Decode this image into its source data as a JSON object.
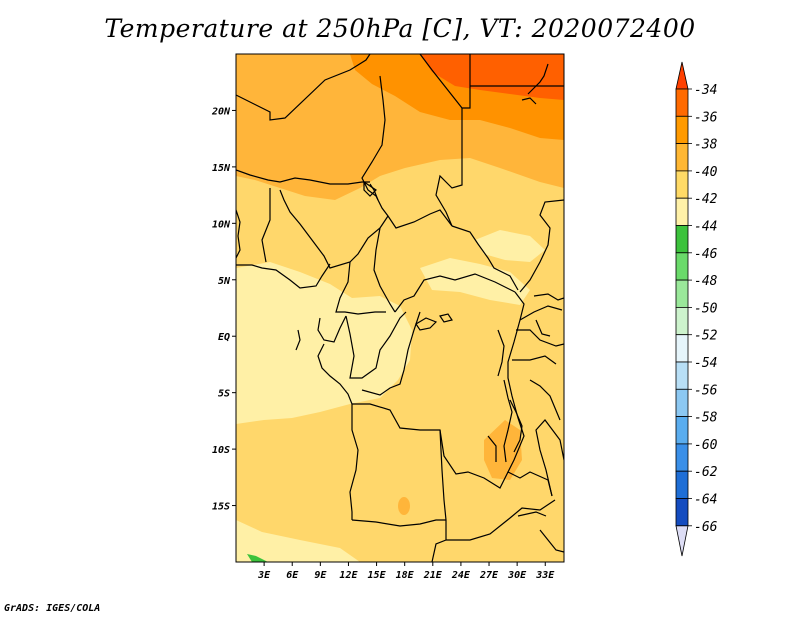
{
  "title": "Temperature at 250hPa [C], VT: 2020072400",
  "credit": "GrADS: IGES/COLA",
  "map": {
    "lon_range": [
      0,
      35
    ],
    "lat_range": [
      -20,
      25
    ],
    "x_ticks": [
      "3E",
      "6E",
      "9E",
      "12E",
      "15E",
      "18E",
      "21E",
      "24E",
      "27E",
      "30E",
      "33E"
    ],
    "x_tick_values": [
      3,
      6,
      9,
      12,
      15,
      18,
      21,
      24,
      27,
      30,
      33
    ],
    "y_ticks": [
      "20N",
      "15N",
      "10N",
      "5N",
      "EQ",
      "5S",
      "10S",
      "15S"
    ],
    "y_tick_values": [
      20,
      15,
      10,
      5,
      0,
      -5,
      -10,
      -15
    ]
  },
  "colorbar": {
    "labels": [
      "-34",
      "-36",
      "-38",
      "-40",
      "-42",
      "-44",
      "-46",
      "-48",
      "-50",
      "-52",
      "-54",
      "-56",
      "-58",
      "-60",
      "-62",
      "-64",
      "-66"
    ],
    "colors": [
      "#ff4000",
      "#ff6a00",
      "#ff9a00",
      "#ffb733",
      "#ffda66",
      "#fff1a8",
      "#3cc23c",
      "#6ada6a",
      "#9ae89a",
      "#cdf3cd",
      "#e6f5fb",
      "#b8dff6",
      "#8cc8f2",
      "#5aadef",
      "#3a8fe8",
      "#1e6ed6",
      "#144cc0",
      "#0b2fa0",
      "#051a66",
      "#ddddf5"
    ]
  },
  "field_colors": {
    "c34": "#ff6000",
    "c36": "#ff9200",
    "c38": "#ffb53a",
    "c40": "#ffd76b",
    "c42": "#fff0a6",
    "c46": "#3cc23c"
  }
}
